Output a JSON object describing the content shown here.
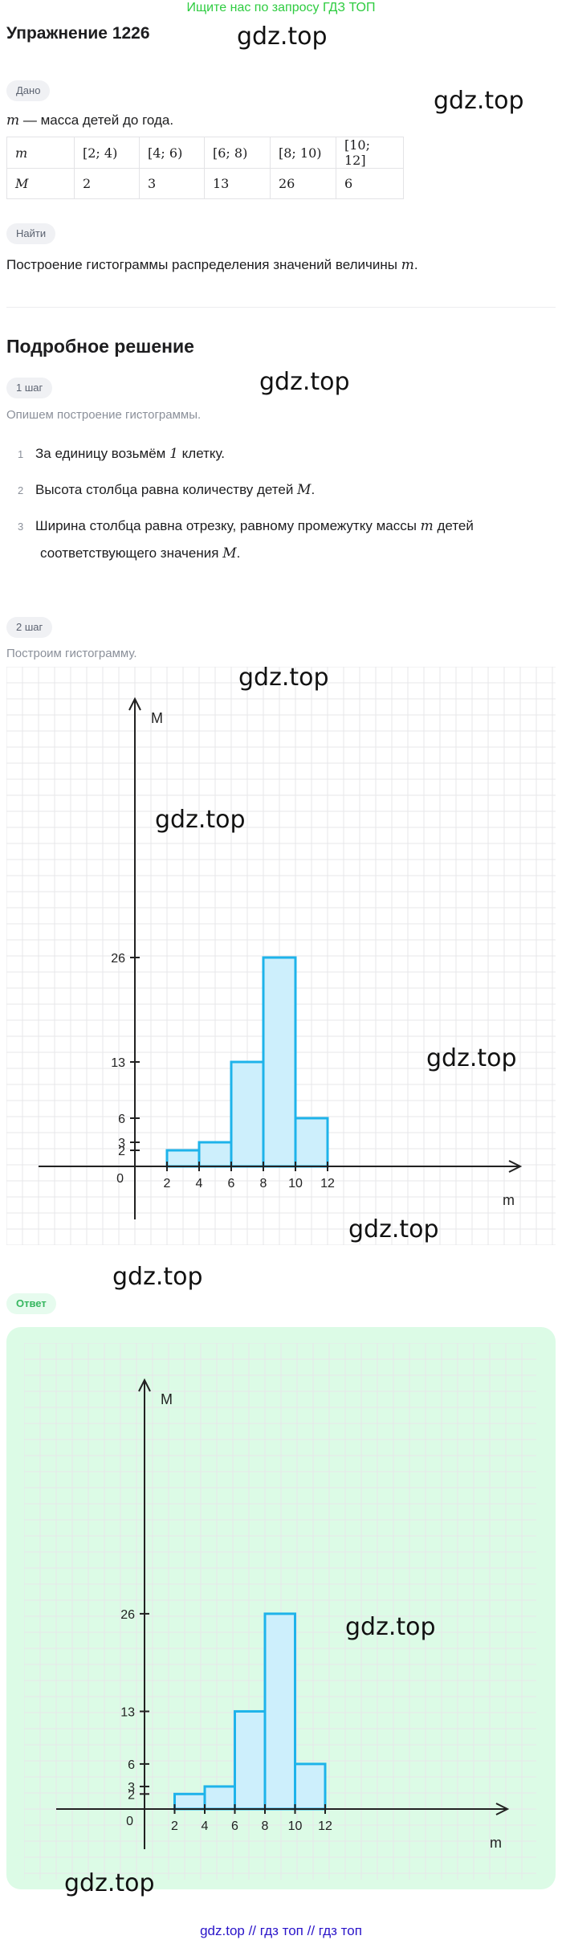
{
  "banner": "Ищите нас по запросу ГДЗ ТОП",
  "title": "Упражнение 1226",
  "watermark": "gdz.top",
  "given": {
    "chip": "Дано",
    "var": "m",
    "text": " — масса детей до года.",
    "table": [
      [
        "m",
        "[2;  4)",
        "[4;  6)",
        "[6; 8)",
        "[8;  10)",
        "[10;  12]"
      ],
      [
        "M",
        "2",
        "3",
        "13",
        "26",
        "6"
      ]
    ]
  },
  "find": {
    "chip": "Найти",
    "text": "Построение гистограммы распределения значений величины ",
    "var": "m",
    "end": "."
  },
  "solution": {
    "heading": "Подробное решение",
    "step1": {
      "chip": "1 шаг",
      "intro": "Опишем построение гистограммы.",
      "items": [
        {
          "num": "1",
          "text": "За единицу возьмём ",
          "math": "1",
          "rest": " клетку."
        },
        {
          "num": "2",
          "text": "Высота столбца равна количеству детей ",
          "math": "M",
          "rest": "."
        },
        {
          "num": "3",
          "text": "Ширина столбца равна отрезку, равному промежутку массы ",
          "math": "m",
          "rest": " детей"
        }
      ],
      "item3_cont": "соответствующего значения ",
      "item3_math": "M",
      "item3_end": "."
    },
    "step2": {
      "chip": "2 шаг",
      "intro": "Построим гистограмму."
    }
  },
  "answer": {
    "chip": "Ответ"
  },
  "footer": "gdz.top  //  гдз топ  //  гдз топ",
  "chart_data": {
    "type": "bar",
    "title": "",
    "xlabel": "m",
    "ylabel": "M",
    "origin_label": "0",
    "bins": [
      [
        2,
        4
      ],
      [
        4,
        6
      ],
      [
        6,
        8
      ],
      [
        8,
        10
      ],
      [
        10,
        12
      ]
    ],
    "values": [
      2,
      3,
      13,
      26,
      6
    ],
    "x_ticks": [
      "2",
      "4",
      "6",
      "8",
      "10",
      "12"
    ],
    "y_ticks": [
      "2",
      "3",
      "6",
      "13",
      "26"
    ],
    "grid": true,
    "bar_color": "#cdeffc",
    "bar_stroke": "#1eb3ea"
  }
}
